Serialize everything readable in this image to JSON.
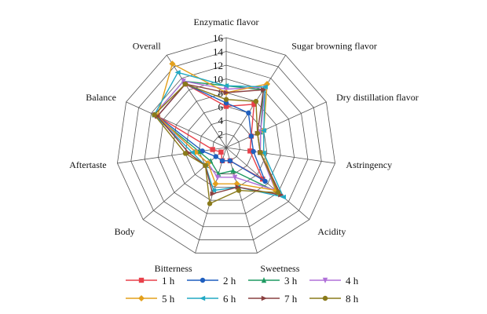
{
  "chart_data": {
    "type": "radar",
    "title": "",
    "axes": [
      "Enzymatic flavor",
      "Sugar browning flavor",
      "Dry distillation flavor",
      "Astringency",
      "Acidity",
      "Sweetness",
      "Bitterness",
      "Body",
      "Aftertaste",
      "Balance",
      "Overall"
    ],
    "rlim": [
      0,
      16
    ],
    "ticks": [
      0,
      2,
      4,
      6,
      8,
      10,
      12,
      14,
      16
    ],
    "tick_labels": [
      "2",
      "4",
      "6",
      "8",
      "10",
      "12",
      "14",
      "16"
    ],
    "grid": true,
    "legend_position": "bottom",
    "series": [
      {
        "name": "1 h",
        "color": "#e8404a",
        "marker": "square",
        "values": [
          6,
          7.5,
          4,
          3.5,
          7,
          2,
          2,
          1,
          2,
          11,
          11
        ]
      },
      {
        "name": "2 h",
        "color": "#1f5fbf",
        "marker": "circle",
        "values": [
          6.5,
          6,
          4,
          4,
          7.5,
          2,
          2,
          2,
          3.5,
          11,
          11
        ]
      },
      {
        "name": "3 h",
        "color": "#1f9a62",
        "marker": "triangle-up",
        "values": [
          9,
          10,
          5.5,
          5,
          10,
          3.5,
          4,
          3,
          4,
          11.5,
          11.5
        ]
      },
      {
        "name": "4 h",
        "color": "#b070d8",
        "marker": "triangle-down",
        "values": [
          8.5,
          10.5,
          5.5,
          5,
          9.5,
          4.5,
          4.5,
          3.5,
          4.5,
          11.5,
          11.5
        ]
      },
      {
        "name": "5 h",
        "color": "#e3a01c",
        "marker": "diamond",
        "values": [
          8,
          11,
          6,
          5.5,
          9.5,
          5.5,
          5.5,
          3.5,
          4.5,
          11,
          14.5
        ]
      },
      {
        "name": "6 h",
        "color": "#22a9c4",
        "marker": "triangle-left",
        "values": [
          9,
          10.5,
          6,
          5.5,
          11,
          6,
          6.5,
          4,
          5,
          11.5,
          13
        ]
      },
      {
        "name": "7 h",
        "color": "#8a4040",
        "marker": "triangle-right",
        "values": [
          8,
          10,
          5,
          5,
          10.5,
          6,
          7,
          4,
          5.5,
          11,
          11
        ]
      },
      {
        "name": "8 h",
        "color": "#8a7a1a",
        "marker": "circle",
        "values": [
          7,
          8,
          5,
          5,
          10,
          6.5,
          8.5,
          4,
          6,
          11.5,
          11
        ]
      }
    ]
  }
}
